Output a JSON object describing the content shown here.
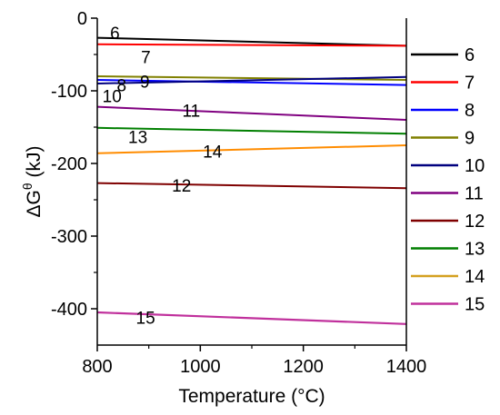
{
  "chart_data": {
    "type": "line",
    "xlabel": "Temperature (°C)",
    "ylabel": "ΔG",
    "ylabel_superscript": "θ",
    "ylabel_unit": " (kJ)",
    "xlim": [
      800,
      1400
    ],
    "ylim": [
      -450,
      0
    ],
    "xticks": [
      800,
      1000,
      1200,
      1400
    ],
    "yticks": [
      0,
      -100,
      -200,
      -300,
      -400
    ],
    "grid": false,
    "legend_position": "right",
    "series": [
      {
        "name": "6",
        "color": "#000000",
        "x": [
          800,
          1400
        ],
        "y": [
          -27,
          -38
        ]
      },
      {
        "name": "7",
        "color": "#ff0000",
        "x": [
          800,
          1400
        ],
        "y": [
          -36,
          -38
        ]
      },
      {
        "name": "8",
        "color": "#0000ff",
        "x": [
          800,
          1400
        ],
        "y": [
          -85,
          -92
        ]
      },
      {
        "name": "9",
        "color": "#808000",
        "x": [
          800,
          1400
        ],
        "y": [
          -80,
          -85
        ]
      },
      {
        "name": "10",
        "color": "#00007f",
        "x": [
          800,
          1400
        ],
        "y": [
          -90,
          -81
        ]
      },
      {
        "name": "11",
        "color": "#800080",
        "x": [
          800,
          1400
        ],
        "y": [
          -122,
          -140
        ]
      },
      {
        "name": "12",
        "color": "#7f0000",
        "x": [
          800,
          1400
        ],
        "y": [
          -227,
          -234
        ]
      },
      {
        "name": "13",
        "color": "#007f00",
        "x": [
          800,
          1400
        ],
        "y": [
          -151,
          -159
        ]
      },
      {
        "name": "14",
        "color": "#ff8c00",
        "x": [
          800,
          1400
        ],
        "y": [
          -186,
          -175
        ]
      },
      {
        "name": "15",
        "color": "#c0309c",
        "x": [
          800,
          1400
        ],
        "y": [
          -405,
          -421
        ]
      }
    ],
    "line_labels": [
      {
        "text": "6",
        "x": 825,
        "y": -20
      },
      {
        "text": "7",
        "x": 885,
        "y": -53
      },
      {
        "text": "8",
        "x": 838,
        "y": -92
      },
      {
        "text": "9",
        "x": 883,
        "y": -87
      },
      {
        "text": "10",
        "x": 810,
        "y": -107
      },
      {
        "text": "11",
        "x": 965,
        "y": -127
      },
      {
        "text": "13",
        "x": 860,
        "y": -163
      },
      {
        "text": "14",
        "x": 1005,
        "y": -183
      },
      {
        "text": "12",
        "x": 945,
        "y": -230
      },
      {
        "text": "15",
        "x": 875,
        "y": -412
      }
    ],
    "legend_items": [
      "6",
      "7",
      "8",
      "9",
      "10",
      "11",
      "12",
      "13",
      "14",
      "15"
    ]
  }
}
